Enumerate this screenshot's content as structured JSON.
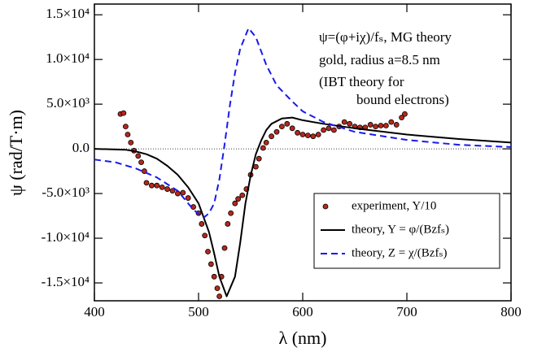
{
  "chart_data": {
    "type": "line",
    "x_label": "λ (nm)",
    "y_label": "ψ (rad/T·m)",
    "annotations": [
      "ψ=(φ+iχ)/fₛ, MG theory",
      "gold, radius a=8.5 nm",
      "(IBT theory for",
      "bound electrons)"
    ],
    "xlim": [
      400,
      800
    ],
    "xticks": [
      400,
      500,
      600,
      700,
      800
    ],
    "ylim": [
      -17000,
      16200
    ],
    "yticks": [
      {
        "value": -15000,
        "label": "-1.5×10⁴"
      },
      {
        "value": -10000,
        "label": "-1.0×10⁴"
      },
      {
        "value": -5000,
        "label": "-5.0×10³"
      },
      {
        "value": 0,
        "label": "0.0"
      },
      {
        "value": 5000,
        "label": "5.0×10³"
      },
      {
        "value": 10000,
        "label": "1.0×10⁴"
      },
      {
        "value": 15000,
        "label": "1.5×10⁴"
      }
    ],
    "legend": "lower right",
    "series": [
      {
        "name": "experiment, Y/10",
        "color": "#b5281c",
        "mode": "markers",
        "x": [
          425,
          428,
          430,
          432,
          435,
          438,
          442,
          445,
          448,
          450,
          455,
          460,
          465,
          470,
          475,
          480,
          485,
          490,
          495,
          500,
          503,
          506,
          509,
          512,
          515,
          518,
          520,
          522,
          525,
          528,
          531,
          535,
          538,
          542,
          546,
          550,
          555,
          558,
          562,
          565,
          570,
          575,
          580,
          585,
          590,
          595,
          600,
          605,
          610,
          615,
          620,
          625,
          630,
          635,
          640,
          645,
          650,
          655,
          660,
          665,
          670,
          675,
          680,
          685,
          690,
          695,
          698
        ],
        "values": [
          3900,
          4000,
          2500,
          1600,
          700,
          -200,
          -800,
          -1500,
          -2500,
          -3800,
          -4100,
          -4100,
          -4300,
          -4500,
          -4700,
          -5000,
          -4900,
          -5500,
          -6500,
          -7200,
          -8400,
          -9700,
          -11500,
          -12900,
          -14300,
          -15600,
          -16500,
          -14300,
          -11100,
          -8400,
          -7200,
          -6100,
          -5600,
          -5200,
          -4500,
          -2900,
          -2000,
          -1100,
          100,
          700,
          1400,
          1900,
          2500,
          2800,
          2300,
          1800,
          1600,
          1500,
          1400,
          1600,
          2100,
          2300,
          2100,
          2500,
          3000,
          2800,
          2500,
          2400,
          2400,
          2700,
          2500,
          2600,
          2600,
          3000,
          2700,
          3500,
          3900
        ]
      },
      {
        "name": "theory, Y = φ/(Bzfₛ)",
        "color": "#000000",
        "mode": "line",
        "dashed": false,
        "x": [
          400,
          430,
          440,
          450,
          460,
          470,
          480,
          490,
          500,
          510,
          515,
          520,
          527,
          535,
          540,
          545,
          550,
          555,
          560,
          565,
          570,
          580,
          590,
          600,
          620,
          650,
          700,
          750,
          800
        ],
        "values": [
          0,
          -100,
          -300,
          -600,
          -1100,
          -1900,
          -2900,
          -4300,
          -6100,
          -9300,
          -11700,
          -14300,
          -16500,
          -14300,
          -10500,
          -6100,
          -3000,
          -600,
          900,
          2100,
          2800,
          3400,
          3500,
          3200,
          2800,
          2300,
          1600,
          1100,
          700
        ]
      },
      {
        "name": "theory, Z = χ/(Bzfₛ)",
        "color": "#1a1aee",
        "mode": "line",
        "dashed": true,
        "x": [
          400,
          420,
          440,
          460,
          480,
          495,
          505,
          510,
          515,
          520,
          525,
          530,
          535,
          540,
          548,
          555,
          565,
          575,
          590,
          600,
          620,
          650,
          700,
          750,
          800
        ],
        "values": [
          -1200,
          -1500,
          -2200,
          -3200,
          -4700,
          -6800,
          -7700,
          -7200,
          -6100,
          -3400,
          500,
          4800,
          8500,
          11200,
          13500,
          12500,
          9400,
          7100,
          5300,
          4200,
          3000,
          1900,
          1000,
          450,
          200
        ]
      }
    ]
  }
}
